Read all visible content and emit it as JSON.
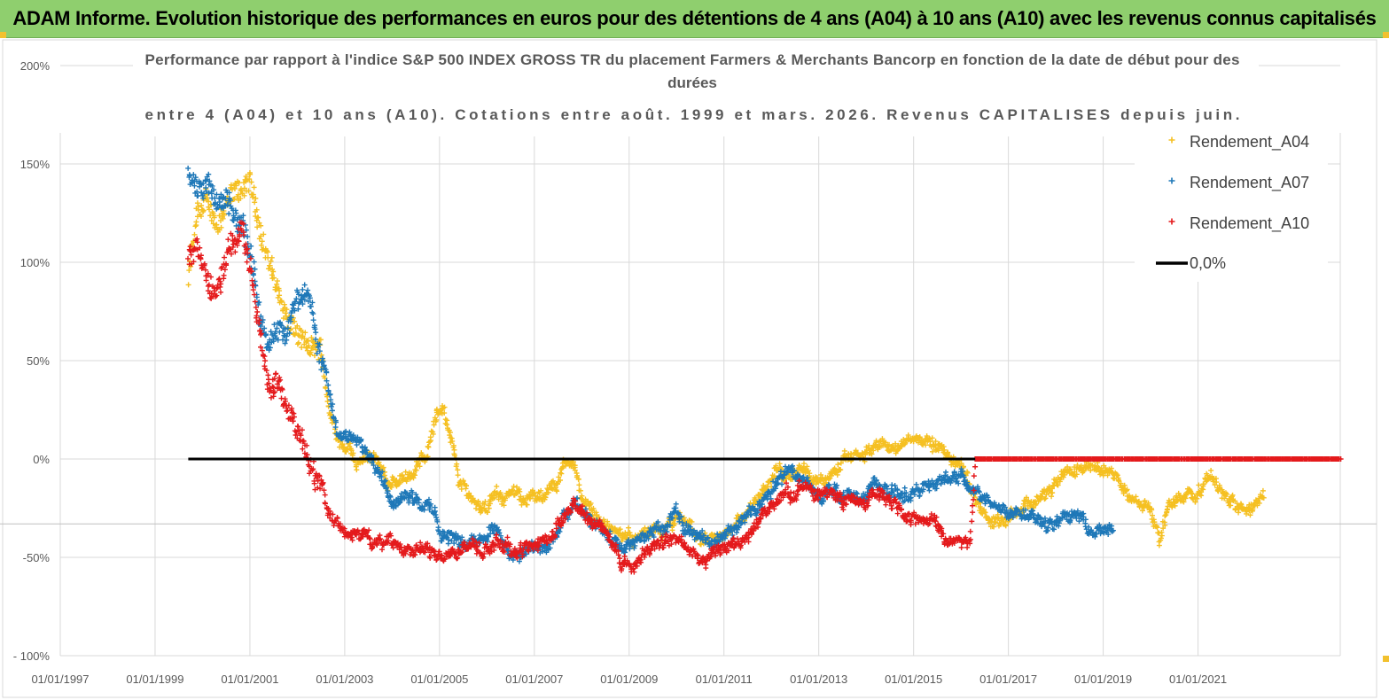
{
  "banner": {
    "title": "ADAM Informe. Evolution historique des performances en euros pour des détentions de 4 ans (A04) à 10 ans (A10) avec les revenus connus capitalisés"
  },
  "colors": {
    "banner": "#8fcf6e",
    "A04": "#f5c022",
    "A07": "#1f78b8",
    "A10": "#e41a1c",
    "zero": "#000000"
  },
  "chart_data": {
    "type": "scatter",
    "title_lines": [
      "Performance par rapport à l'indice S&P 500 INDEX GROSS TR  du placement Farmers & Merchants Bancorp en fonction de la date de début pour des",
      "durées",
      "entre 4 (A04) et 10 ans (A10).  Cotations entre août. 1999 et mars. 2026. Revenus CAPITALISES depuis juin."
    ],
    "xlabel": "",
    "ylabel": "",
    "xlim": [
      1997.0,
      2024.0
    ],
    "ylim": [
      -100,
      200
    ],
    "yticks": [
      -100,
      -50,
      0,
      50,
      100,
      150,
      200
    ],
    "ytick_labels": [
      "- 100%",
      "-50%",
      "0%",
      "50%",
      "100%",
      "150%",
      "200%"
    ],
    "xticks": [
      1997,
      1999,
      2001,
      2003,
      2005,
      2007,
      2009,
      2011,
      2013,
      2015,
      2017,
      2019,
      2021
    ],
    "xtick_labels": [
      "01/01/1997",
      "01/01/1999",
      "01/01/2001",
      "01/01/2003",
      "01/01/2005",
      "01/01/2007",
      "01/01/2009",
      "01/01/2011",
      "01/01/2013",
      "01/01/2015",
      "01/01/2017",
      "01/01/2019",
      "01/01/2021"
    ],
    "grid": true,
    "legend_position": "top-right",
    "series": [
      {
        "name": "Rendement_A04",
        "marker": "plus",
        "keypoints": [
          [
            1999.7,
            90
          ],
          [
            1999.9,
            125
          ],
          [
            2000.1,
            128
          ],
          [
            2000.3,
            120
          ],
          [
            2000.5,
            130
          ],
          [
            2000.8,
            135
          ],
          [
            2001.0,
            140
          ],
          [
            2001.2,
            120
          ],
          [
            2001.4,
            100
          ],
          [
            2001.6,
            85
          ],
          [
            2001.8,
            70
          ],
          [
            2002.0,
            62
          ],
          [
            2002.3,
            55
          ],
          [
            2002.5,
            55
          ],
          [
            2002.7,
            22
          ],
          [
            2002.9,
            10
          ],
          [
            2003.1,
            8
          ],
          [
            2003.3,
            -2
          ],
          [
            2003.5,
            0
          ],
          [
            2003.7,
            0
          ],
          [
            2003.9,
            -15
          ],
          [
            2004.1,
            -12
          ],
          [
            2004.3,
            -8
          ],
          [
            2004.5,
            -5
          ],
          [
            2004.7,
            2
          ],
          [
            2004.9,
            20
          ],
          [
            2005.1,
            28
          ],
          [
            2005.2,
            15
          ],
          [
            2005.4,
            -10
          ],
          [
            2005.7,
            -20
          ],
          [
            2006.0,
            -25
          ],
          [
            2006.3,
            -18
          ],
          [
            2006.6,
            -20
          ],
          [
            2006.9,
            -18
          ],
          [
            2007.2,
            -22
          ],
          [
            2007.4,
            -15
          ],
          [
            2007.6,
            -5
          ],
          [
            2007.8,
            0
          ],
          [
            2008.0,
            -20
          ],
          [
            2008.3,
            -28
          ],
          [
            2008.6,
            -35
          ],
          [
            2008.9,
            -42
          ],
          [
            2009.2,
            -38
          ],
          [
            2009.5,
            -40
          ],
          [
            2009.8,
            -37
          ],
          [
            2010.1,
            -32
          ],
          [
            2010.4,
            -38
          ],
          [
            2010.7,
            -45
          ],
          [
            2011.0,
            -40
          ],
          [
            2011.3,
            -30
          ],
          [
            2011.6,
            -26
          ],
          [
            2011.9,
            -15
          ],
          [
            2012.1,
            -5
          ],
          [
            2012.3,
            -8
          ],
          [
            2012.6,
            -2
          ],
          [
            2012.9,
            -8
          ],
          [
            2013.1,
            -12
          ],
          [
            2013.4,
            -5
          ],
          [
            2013.7,
            0
          ],
          [
            2014.0,
            2
          ],
          [
            2014.3,
            8
          ],
          [
            2014.6,
            5
          ],
          [
            2014.9,
            10
          ],
          [
            2015.2,
            12
          ],
          [
            2015.5,
            5
          ],
          [
            2015.8,
            0
          ],
          [
            2016.1,
            -8
          ],
          [
            2016.4,
            -25
          ],
          [
            2016.7,
            -32
          ],
          [
            2017.0,
            -28
          ],
          [
            2017.4,
            -22
          ],
          [
            2017.8,
            -18
          ],
          [
            2018.2,
            -10
          ],
          [
            2018.5,
            -5
          ],
          [
            2018.8,
            0
          ],
          [
            2019.1,
            -5
          ],
          [
            2019.4,
            -15
          ],
          [
            2019.7,
            -20
          ],
          [
            2020.0,
            -25
          ],
          [
            2020.2,
            -40
          ],
          [
            2020.4,
            -22
          ],
          [
            2020.7,
            -20
          ],
          [
            2021.0,
            -15
          ],
          [
            2021.3,
            -10
          ],
          [
            2021.6,
            -18
          ],
          [
            2021.9,
            -20
          ],
          [
            2022.2,
            -25
          ],
          [
            2022.4,
            -20
          ]
        ]
      },
      {
        "name": "Rendement_A07",
        "marker": "plus",
        "keypoints": [
          [
            1999.7,
            150
          ],
          [
            1999.9,
            135
          ],
          [
            2000.1,
            140
          ],
          [
            2000.3,
            128
          ],
          [
            2000.5,
            132
          ],
          [
            2000.8,
            120
          ],
          [
            2001.0,
            112
          ],
          [
            2001.2,
            75
          ],
          [
            2001.4,
            55
          ],
          [
            2001.6,
            60
          ],
          [
            2001.8,
            65
          ],
          [
            2002.0,
            80
          ],
          [
            2002.2,
            90
          ],
          [
            2002.4,
            60
          ],
          [
            2002.6,
            45
          ],
          [
            2002.8,
            15
          ],
          [
            2003.0,
            10
          ],
          [
            2003.3,
            15
          ],
          [
            2003.5,
            5
          ],
          [
            2003.7,
            -5
          ],
          [
            2003.9,
            -15
          ],
          [
            2004.1,
            -20
          ],
          [
            2004.3,
            -15
          ],
          [
            2004.5,
            -20
          ],
          [
            2004.8,
            -25
          ],
          [
            2005.0,
            -35
          ],
          [
            2005.3,
            -40
          ],
          [
            2005.6,
            -42
          ],
          [
            2005.9,
            -38
          ],
          [
            2006.2,
            -35
          ],
          [
            2006.5,
            -48
          ],
          [
            2006.8,
            -48
          ],
          [
            2007.1,
            -45
          ],
          [
            2007.4,
            -40
          ],
          [
            2007.6,
            -32
          ],
          [
            2007.9,
            -25
          ],
          [
            2008.2,
            -30
          ],
          [
            2008.5,
            -35
          ],
          [
            2008.8,
            -48
          ],
          [
            2009.1,
            -45
          ],
          [
            2009.4,
            -38
          ],
          [
            2009.7,
            -35
          ],
          [
            2010.0,
            -28
          ],
          [
            2010.3,
            -35
          ],
          [
            2010.6,
            -42
          ],
          [
            2010.9,
            -40
          ],
          [
            2011.2,
            -35
          ],
          [
            2011.5,
            -28
          ],
          [
            2011.8,
            -20
          ],
          [
            2012.1,
            -10
          ],
          [
            2012.4,
            -5
          ],
          [
            2012.7,
            -10
          ],
          [
            2013.0,
            -20
          ],
          [
            2013.3,
            -15
          ],
          [
            2013.6,
            -18
          ],
          [
            2013.9,
            -20
          ],
          [
            2014.2,
            -12
          ],
          [
            2014.5,
            -18
          ],
          [
            2014.8,
            -15
          ],
          [
            2015.1,
            -18
          ],
          [
            2015.4,
            -10
          ],
          [
            2015.7,
            -12
          ],
          [
            2016.0,
            -8
          ],
          [
            2016.3,
            -15
          ],
          [
            2016.6,
            -22
          ],
          [
            2016.9,
            -25
          ],
          [
            2017.2,
            -28
          ],
          [
            2017.5,
            -25
          ],
          [
            2017.8,
            -30
          ],
          [
            2018.1,
            -32
          ],
          [
            2018.4,
            -28
          ],
          [
            2018.7,
            -33
          ],
          [
            2019.0,
            -38
          ],
          [
            2019.2,
            -36
          ]
        ]
      },
      {
        "name": "Rendement_A10",
        "marker": "plus",
        "keypoints": [
          [
            1999.7,
            100
          ],
          [
            1999.9,
            110
          ],
          [
            2000.1,
            95
          ],
          [
            2000.3,
            85
          ],
          [
            2000.5,
            105
          ],
          [
            2000.8,
            115
          ],
          [
            2001.0,
            100
          ],
          [
            2001.2,
            65
          ],
          [
            2001.4,
            40
          ],
          [
            2001.6,
            35
          ],
          [
            2001.8,
            25
          ],
          [
            2002.0,
            15
          ],
          [
            2002.3,
            -5
          ],
          [
            2002.5,
            -15
          ],
          [
            2002.7,
            -30
          ],
          [
            2002.9,
            -35
          ],
          [
            2003.2,
            -38
          ],
          [
            2003.5,
            -40
          ],
          [
            2003.8,
            -45
          ],
          [
            2004.1,
            -42
          ],
          [
            2004.4,
            -45
          ],
          [
            2004.7,
            -48
          ],
          [
            2005.0,
            -50
          ],
          [
            2005.3,
            -48
          ],
          [
            2005.6,
            -45
          ],
          [
            2005.9,
            -46
          ],
          [
            2006.2,
            -42
          ],
          [
            2006.5,
            -48
          ],
          [
            2006.8,
            -45
          ],
          [
            2007.1,
            -42
          ],
          [
            2007.4,
            -38
          ],
          [
            2007.6,
            -30
          ],
          [
            2007.9,
            -25
          ],
          [
            2008.2,
            -32
          ],
          [
            2008.5,
            -38
          ],
          [
            2008.8,
            -50
          ],
          [
            2009.1,
            -55
          ],
          [
            2009.4,
            -45
          ],
          [
            2009.7,
            -42
          ],
          [
            2010.0,
            -40
          ],
          [
            2010.3,
            -45
          ],
          [
            2010.6,
            -52
          ],
          [
            2010.9,
            -48
          ],
          [
            2011.2,
            -45
          ],
          [
            2011.5,
            -40
          ],
          [
            2011.8,
            -30
          ],
          [
            2012.1,
            -22
          ],
          [
            2012.4,
            -18
          ],
          [
            2012.7,
            -15
          ],
          [
            2013.0,
            -20
          ],
          [
            2013.3,
            -18
          ],
          [
            2013.6,
            -22
          ],
          [
            2013.9,
            -20
          ],
          [
            2014.2,
            -15
          ],
          [
            2014.5,
            -20
          ],
          [
            2014.8,
            -25
          ],
          [
            2015.1,
            -30
          ],
          [
            2015.4,
            -32
          ],
          [
            2015.7,
            -40
          ],
          [
            2016.0,
            -42
          ],
          [
            2016.2,
            -40
          ],
          [
            2016.3,
            0
          ],
          [
            2024.0,
            0
          ]
        ]
      },
      {
        "name": "0,0%",
        "type": "line",
        "x": [
          1999.7,
          2016.3
        ],
        "values": [
          0,
          0
        ]
      }
    ]
  }
}
